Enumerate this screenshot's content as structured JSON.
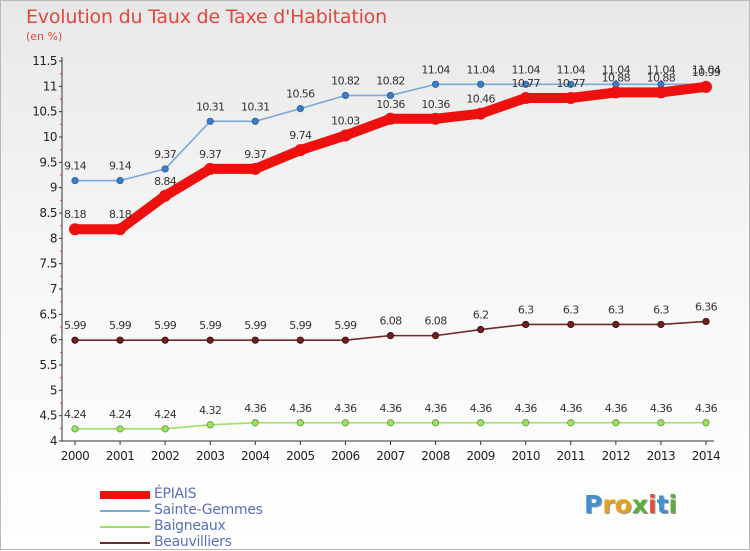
{
  "header": {
    "title": "Evolution du Taux de Taxe d'Habitation",
    "subtitle": "(en %)"
  },
  "logo": {
    "text": "Proxiti",
    "letters": [
      "P",
      "r",
      "o",
      "x",
      "i",
      "t",
      "i"
    ],
    "colors": [
      "#3f8fd2",
      "#e2a21c",
      "#e2a21c",
      "#5aae3c",
      "#e04f40",
      "#3f8fd2",
      "#5aae3c"
    ]
  },
  "chart_data": {
    "type": "line",
    "title": "Evolution du Taux de Taxe d'Habitation",
    "subtitle": "(en %)",
    "x": [
      "2000",
      "2001",
      "2002",
      "2003",
      "2004",
      "2005",
      "2006",
      "2007",
      "2008",
      "2009",
      "2010",
      "2011",
      "2012",
      "2013",
      "2014"
    ],
    "ylim": [
      4,
      11.5
    ],
    "yticks": [
      "4",
      "4.5",
      "5",
      "5.5",
      "6",
      "6.5",
      "7",
      "7.5",
      "8",
      "8.5",
      "9",
      "9.5",
      "10",
      "10.5",
      "11",
      "11.5"
    ],
    "legend_position": "bottom-left",
    "series": [
      {
        "name": "ÉPIAIS",
        "color": "#ee0f0f",
        "values": [
          8.18,
          8.18,
          8.84,
          9.37,
          9.37,
          9.74,
          10.03,
          10.36,
          10.36,
          10.46,
          10.77,
          10.77,
          10.88,
          10.88,
          10.99
        ],
        "labels": [
          "8.18",
          "8.18",
          "8.84",
          "9.37",
          "9.37",
          "9.74",
          "10.03",
          "10.36",
          "10.36",
          "10.46",
          "10.77",
          "10.77",
          "10.88",
          "10.88",
          "10.99"
        ]
      },
      {
        "name": "Sainte-Gemmes",
        "color": "#7aaad8",
        "values": [
          9.14,
          9.14,
          9.37,
          10.31,
          10.31,
          10.56,
          10.82,
          10.82,
          11.04,
          11.04,
          11.04,
          11.04,
          11.04,
          11.04,
          11.04
        ],
        "labels": [
          "9.14",
          "9.14",
          "9.37",
          "10.31",
          "10.31",
          "10.56",
          "10.82",
          "10.82",
          "11.04",
          "11.04",
          "11.04",
          "11.04",
          "11.04",
          "11.04",
          "11.04"
        ]
      },
      {
        "name": "Baigneaux",
        "color": "#9ce066",
        "values": [
          4.24,
          4.24,
          4.24,
          4.32,
          4.36,
          4.36,
          4.36,
          4.36,
          4.36,
          4.36,
          4.36,
          4.36,
          4.36,
          4.36,
          4.36
        ],
        "labels": [
          "4.24",
          "4.24",
          "4.24",
          "4.32",
          "4.36",
          "4.36",
          "4.36",
          "4.36",
          "4.36",
          "4.36",
          "4.36",
          "4.36",
          "4.36",
          "4.36",
          "4.36"
        ]
      },
      {
        "name": "Beauvilliers",
        "color": "#6e2a2a",
        "values": [
          5.99,
          5.99,
          5.99,
          5.99,
          5.99,
          5.99,
          5.99,
          6.08,
          6.08,
          6.2,
          6.3,
          6.3,
          6.3,
          6.3,
          6.36
        ],
        "labels": [
          "5.99",
          "5.99",
          "5.99",
          "5.99",
          "5.99",
          "5.99",
          "5.99",
          "6.08",
          "6.08",
          "6.2",
          "6.3",
          "6.3",
          "6.3",
          "6.3",
          "6.36"
        ]
      }
    ]
  }
}
